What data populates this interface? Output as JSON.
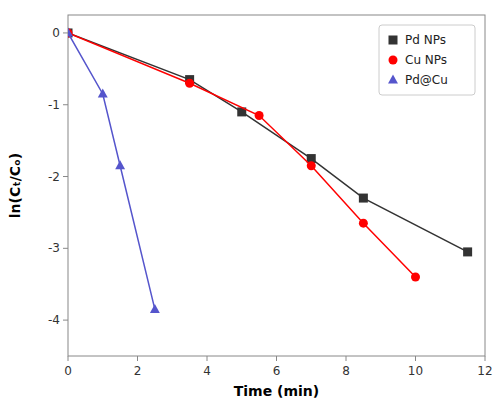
{
  "chart_data": {
    "type": "line",
    "title": "",
    "xlabel": "Time (min)",
    "ylabel": "ln(Cₜ/Cₒ)",
    "xlim": [
      0,
      12
    ],
    "ylim": [
      -4.5,
      0.25
    ],
    "xticks": [
      0,
      2,
      4,
      6,
      8,
      10,
      12
    ],
    "yticks": [
      0,
      -1,
      -2,
      -3,
      -4
    ],
    "grid": false,
    "legend": "upper right",
    "series": [
      {
        "name": "Pd NPs",
        "color": "#333333",
        "marker": "square",
        "x": [
          0,
          3.5,
          5,
          7,
          8.5,
          11.5
        ],
        "values": [
          0,
          -0.65,
          -1.1,
          -1.75,
          -2.3,
          -3.05
        ]
      },
      {
        "name": "Cu NPs",
        "color": "red",
        "marker": "circle",
        "x": [
          0,
          3.5,
          5.5,
          7,
          8.5,
          10
        ],
        "values": [
          0,
          -0.7,
          -1.15,
          -1.85,
          -2.65,
          -3.4
        ]
      },
      {
        "name": "Pd@Cu",
        "color": "#5555cc",
        "marker": "triangle",
        "x": [
          0,
          1,
          1.5,
          2.5
        ],
        "values": [
          0,
          -0.85,
          -1.85,
          -3.85
        ]
      }
    ]
  }
}
